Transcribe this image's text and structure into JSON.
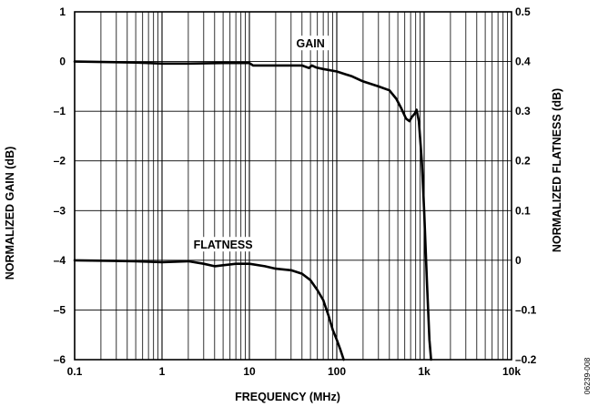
{
  "figure_id": "06239-008",
  "chart_data": {
    "type": "line",
    "title": "",
    "xlabel": "FREQUENCY (MHz)",
    "ylabel_left": "NORMALIZED GAIN (dB)",
    "ylabel_right": "NORMALIZED FLATNESS (dB)",
    "x_scale": "log",
    "xlim": [
      0.1,
      10000
    ],
    "ylim_left": [
      -6,
      1
    ],
    "ylim_right": [
      -0.2,
      0.5
    ],
    "grid": true,
    "x_ticks": [
      {
        "value": 0.1,
        "label": "0.1"
      },
      {
        "value": 1,
        "label": "1"
      },
      {
        "value": 10,
        "label": "10"
      },
      {
        "value": 100,
        "label": "100"
      },
      {
        "value": 1000,
        "label": "1k"
      },
      {
        "value": 10000,
        "label": "10k"
      }
    ],
    "y_ticks_left": [
      {
        "value": 1,
        "label": "1"
      },
      {
        "value": 0,
        "label": "0"
      },
      {
        "value": -1,
        "label": "–1"
      },
      {
        "value": -2,
        "label": "–2"
      },
      {
        "value": -3,
        "label": "–3"
      },
      {
        "value": -4,
        "label": "–4"
      },
      {
        "value": -5,
        "label": "–5"
      },
      {
        "value": -6,
        "label": "–6"
      }
    ],
    "y_ticks_right": [
      {
        "value": 0.5,
        "label": "0.5"
      },
      {
        "value": 0.4,
        "label": "0.4"
      },
      {
        "value": 0.3,
        "label": "0.3"
      },
      {
        "value": 0.2,
        "label": "0.2"
      },
      {
        "value": 0.1,
        "label": "0.1"
      },
      {
        "value": 0,
        "label": "0"
      },
      {
        "value": -0.1,
        "label": "–0.1"
      },
      {
        "value": -0.2,
        "label": "–0.2"
      }
    ],
    "series": [
      {
        "name": "GAIN",
        "axis": "left",
        "x": [
          0.1,
          0.5,
          1,
          2,
          5,
          10,
          11,
          20,
          40,
          48,
          52,
          58,
          70,
          100,
          150,
          200,
          300,
          400,
          480,
          550,
          620,
          680,
          720,
          780,
          820,
          870,
          940,
          1000,
          1080,
          1150,
          1200
        ],
        "y": [
          0,
          -0.02,
          -0.04,
          -0.04,
          -0.03,
          -0.03,
          -0.08,
          -0.08,
          -0.08,
          -0.13,
          -0.08,
          -0.12,
          -0.15,
          -0.2,
          -0.3,
          -0.4,
          -0.5,
          -0.58,
          -0.75,
          -0.95,
          -1.15,
          -1.2,
          -1.12,
          -1.05,
          -0.97,
          -1.2,
          -2.0,
          -3.0,
          -4.5,
          -5.6,
          -6.0
        ]
      },
      {
        "name": "FLATNESS",
        "axis": "right",
        "x": [
          0.1,
          0.5,
          1,
          2,
          3,
          4,
          5,
          7,
          10,
          15,
          20,
          30,
          40,
          50,
          60,
          70,
          80,
          90,
          100,
          110,
          120
        ],
        "y": [
          0.0,
          -0.002,
          -0.004,
          -0.002,
          -0.007,
          -0.012,
          -0.01,
          -0.007,
          -0.007,
          -0.012,
          -0.017,
          -0.02,
          -0.027,
          -0.04,
          -0.06,
          -0.08,
          -0.11,
          -0.14,
          -0.16,
          -0.18,
          -0.2
        ]
      }
    ],
    "annotations": [
      {
        "text": "GAIN",
        "x": 50,
        "y_left": 0.3
      },
      {
        "text": "FLATNESS",
        "x": 5,
        "y_left": -3.75
      }
    ]
  }
}
